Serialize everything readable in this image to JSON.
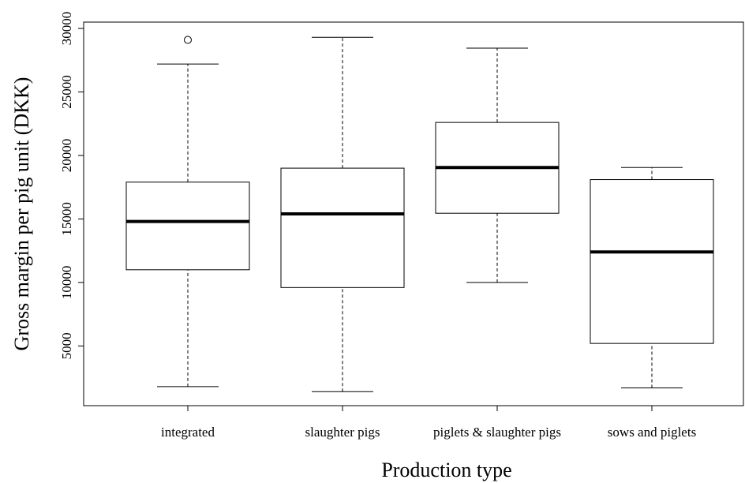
{
  "chart_data": {
    "type": "boxplot",
    "xlabel": "Production type",
    "ylabel": "Gross margin per pig unit (DKK)",
    "categories": [
      "integrated",
      "slaughter pigs",
      "piglets & slaughter pigs",
      "sows and piglets"
    ],
    "boxes": [
      {
        "min": 1800,
        "q1": 11000,
        "median": 14800,
        "q3": 17900,
        "max": 27200,
        "outliers": [
          29100
        ]
      },
      {
        "min": 1400,
        "q1": 9600,
        "median": 15400,
        "q3": 19000,
        "max": 29300,
        "outliers": []
      },
      {
        "min": 10000,
        "q1": 15450,
        "median": 19050,
        "q3": 22600,
        "max": 28450,
        "outliers": []
      },
      {
        "min": 1700,
        "q1": 5200,
        "median": 12400,
        "q3": 18100,
        "max": 19050,
        "outliers": []
      }
    ],
    "color": "#000000",
    "ylim": [
      300,
      30500
    ],
    "yticks": [
      5000,
      10000,
      15000,
      20000,
      25000,
      30000
    ]
  }
}
